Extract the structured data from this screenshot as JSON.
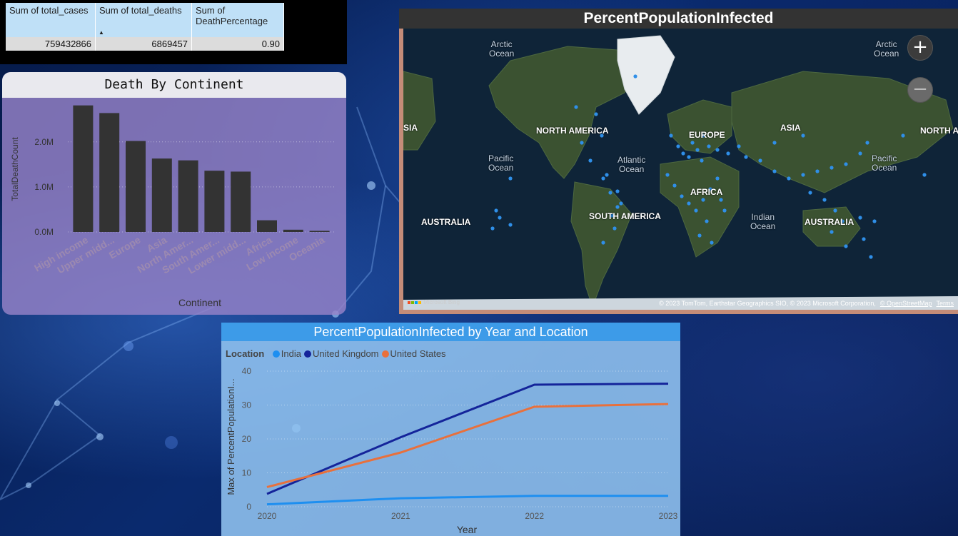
{
  "kpi": {
    "headers": [
      "Sum of total_cases",
      "Sum of total_deaths",
      "Sum of DeathPercentage"
    ],
    "values": [
      "759432866",
      "6869457",
      "0.90"
    ],
    "sort_icon": "sort-ascending-icon"
  },
  "bar_chart": {
    "title": "Death By Continent",
    "xlabel": "Continent",
    "ylabel": "TotalDeathCount",
    "tick_labels": [
      "0.0M",
      "1.0M",
      "2.0M"
    ],
    "category_labels": [
      "High income",
      "Upper midd...",
      "Europe",
      "Asia",
      "North Amer...",
      "South Amer...",
      "Lower midd...",
      "Africa",
      "Low income",
      "Oceania"
    ]
  },
  "map": {
    "title": "PercentPopulationInfected",
    "continent_labels": [
      "NORTH AMERICA",
      "EUROPE",
      "ASIA",
      "SOUTH AMERICA",
      "AFRICA",
      "AUSTRALIA",
      "AUSTRALIA",
      "SIA",
      "NORTH A"
    ],
    "ocean_labels": [
      "Arctic\nOcean",
      "Arctic\nOcean",
      "Pacific\nOcean",
      "Atlantic\nOcean",
      "Pacific\nOcean",
      "Indian\nOcean"
    ],
    "attribution": "© 2023 TomTom, Earthstar Geographics SIO, © 2023 Microsoft Corporation,",
    "attribution_link": "© OpenStreetMap",
    "terms_link": "Terms",
    "logo_text": "Microsoft Bing",
    "zoom_in_icon": "plus-icon",
    "zoom_out_icon": "minus-icon",
    "point_color": "#2f8fe8"
  },
  "line_chart": {
    "title": "PercentPopulationInfected by Year and Location",
    "legend_title": "Location",
    "xlabel": "Year",
    "ylabel": "Max of PercentPopulationI...",
    "series_colors": [
      "#1e8ff0",
      "#14249a",
      "#e8703c"
    ]
  },
  "chart_data": [
    {
      "type": "bar",
      "title": "Death By Continent",
      "xlabel": "Continent",
      "ylabel": "TotalDeathCount",
      "categories": [
        "High income",
        "Upper midd...",
        "Europe",
        "Asia",
        "North Amer...",
        "South Amer...",
        "Lower midd...",
        "Africa",
        "Low income",
        "Oceania"
      ],
      "values": [
        2810000,
        2640000,
        2020000,
        1630000,
        1590000,
        1360000,
        1340000,
        260000,
        50000,
        25000
      ],
      "ylim": [
        0,
        2900000
      ],
      "yticks": [
        0,
        1000000,
        2000000
      ],
      "bar_color": "#333333",
      "grid": true
    },
    {
      "type": "line",
      "title": "PercentPopulationInfected by Year and Location",
      "xlabel": "Year",
      "ylabel": "Max of PercentPopulationI...",
      "x": [
        "2020",
        "2021",
        "2022",
        "2023"
      ],
      "ylim": [
        0,
        40
      ],
      "yticks": [
        0,
        10,
        20,
        30,
        40
      ],
      "series": [
        {
          "name": "India",
          "values": [
            0.7,
            2.5,
            3.2,
            3.2
          ],
          "color": "#1e8ff0"
        },
        {
          "name": "United Kingdom",
          "values": [
            3.8,
            20.5,
            36.0,
            36.3
          ],
          "color": "#14249a"
        },
        {
          "name": "United States",
          "values": [
            5.8,
            16.0,
            29.5,
            30.3
          ],
          "color": "#e8703c"
        }
      ],
      "legend": "top-left",
      "grid": true
    }
  ]
}
